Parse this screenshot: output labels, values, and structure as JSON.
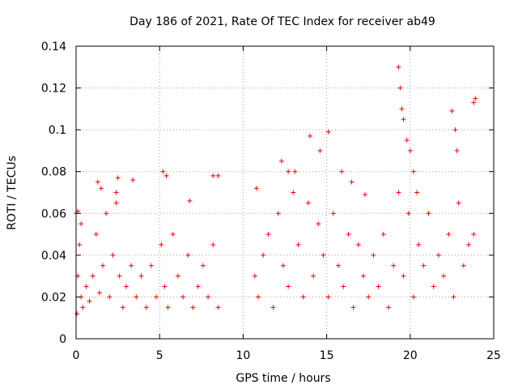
{
  "chart_data": {
    "type": "scatter",
    "title": "Day 186 of 2021, Rate Of TEC Index for receiver ab49",
    "xlabel": "GPS time / hours",
    "ylabel": "ROTI / TECUs",
    "xlim": [
      0,
      25
    ],
    "ylim": [
      0,
      0.14
    ],
    "xticks": [
      0,
      5,
      10,
      15,
      20,
      25
    ],
    "xtick_labels": [
      "0",
      "5",
      "10",
      "15",
      "20",
      "25"
    ],
    "yticks": [
      0,
      0.02,
      0.04,
      0.06,
      0.08,
      0.1,
      0.12,
      0.14
    ],
    "ytick_labels": [
      "0",
      "0.02",
      "0.04",
      "0.06",
      "0.08",
      "0.1",
      "0.12",
      "0.14"
    ],
    "grid": true,
    "marker": "+",
    "color": "#ff0000",
    "series": [
      {
        "name": "ROTI",
        "x": [
          0.05,
          0.1,
          0.2,
          0.3,
          0.4,
          0.6,
          0.8,
          1.0,
          1.2,
          1.4,
          1.6,
          1.8,
          2.0,
          2.2,
          2.4,
          2.6,
          2.8,
          3.0,
          3.3,
          3.6,
          3.9,
          4.2,
          4.5,
          4.8,
          5.1,
          5.3,
          5.5,
          5.8,
          6.1,
          6.4,
          6.7,
          7.0,
          7.3,
          7.6,
          7.9,
          8.2,
          8.5,
          0.0,
          0.1,
          0.3,
          1.3,
          1.5,
          2.4,
          2.5,
          3.4,
          5.2,
          5.4,
          6.8,
          8.2,
          8.5,
          10.7,
          10.9,
          11.2,
          11.5,
          11.8,
          12.1,
          12.4,
          12.7,
          13.0,
          13.3,
          13.6,
          13.9,
          14.2,
          14.5,
          14.8,
          15.1,
          15.4,
          15.7,
          16.0,
          16.3,
          16.6,
          16.9,
          17.2,
          17.5,
          17.8,
          18.1,
          18.4,
          18.7,
          19.0,
          19.3,
          19.6,
          19.9,
          20.2,
          20.5,
          20.8,
          21.1,
          21.4,
          21.7,
          22.0,
          22.3,
          22.6,
          22.9,
          23.2,
          23.5,
          23.8,
          10.8,
          12.3,
          12.7,
          13.1,
          14.0,
          14.6,
          15.1,
          15.9,
          16.5,
          17.3,
          19.3,
          19.4,
          19.5,
          19.6,
          19.8,
          20.0,
          20.2,
          20.4,
          22.5,
          22.7,
          22.8,
          23.8,
          23.9
        ],
        "y": [
          0.012,
          0.03,
          0.045,
          0.02,
          0.015,
          0.025,
          0.018,
          0.03,
          0.05,
          0.022,
          0.035,
          0.06,
          0.02,
          0.04,
          0.065,
          0.03,
          0.015,
          0.025,
          0.035,
          0.02,
          0.03,
          0.015,
          0.035,
          0.02,
          0.045,
          0.025,
          0.015,
          0.05,
          0.03,
          0.02,
          0.04,
          0.015,
          0.025,
          0.035,
          0.02,
          0.045,
          0.015,
          0.06,
          0.061,
          0.055,
          0.075,
          0.072,
          0.07,
          0.077,
          0.076,
          0.08,
          0.078,
          0.066,
          0.078,
          0.078,
          0.03,
          0.02,
          0.04,
          0.05,
          0.015,
          0.06,
          0.035,
          0.025,
          0.07,
          0.045,
          0.02,
          0.065,
          0.03,
          0.055,
          0.04,
          0.02,
          0.06,
          0.035,
          0.025,
          0.05,
          0.015,
          0.045,
          0.03,
          0.02,
          0.04,
          0.025,
          0.05,
          0.015,
          0.035,
          0.07,
          0.03,
          0.06,
          0.02,
          0.045,
          0.035,
          0.06,
          0.025,
          0.04,
          0.03,
          0.05,
          0.02,
          0.065,
          0.035,
          0.045,
          0.05,
          0.072,
          0.085,
          0.08,
          0.08,
          0.097,
          0.09,
          0.099,
          0.08,
          0.075,
          0.069,
          0.13,
          0.12,
          0.11,
          0.105,
          0.095,
          0.09,
          0.08,
          0.07,
          0.109,
          0.1,
          0.09,
          0.113,
          0.115
        ]
      }
    ]
  }
}
